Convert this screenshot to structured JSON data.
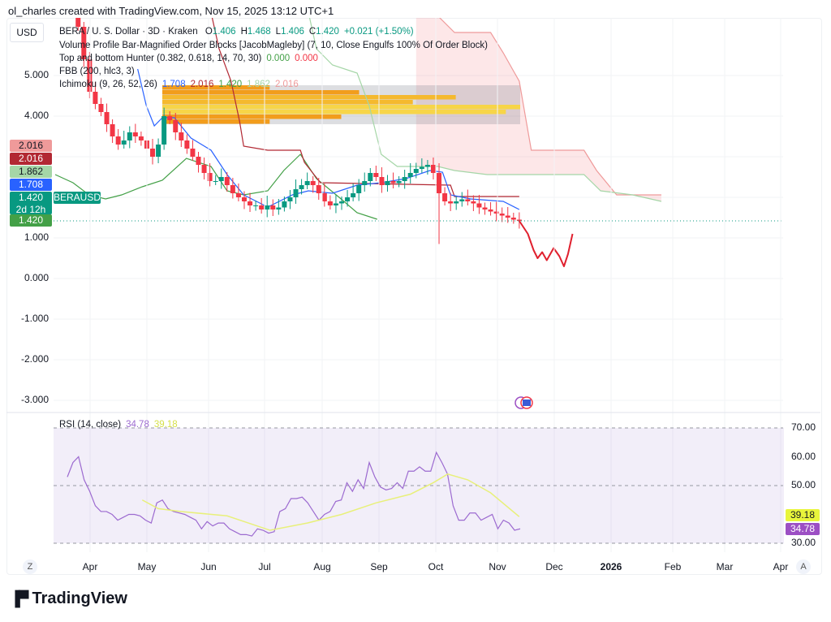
{
  "credit": "ol_charles created with TradingView.com, Nov 15, 2025 13:12 UTC+1",
  "currency_button": "USD",
  "legend": {
    "symbol": "BERA / U. S. Dollar · 3D · Kraken",
    "o_label": "O",
    "o": "1.406",
    "h_label": "H",
    "h": "1.468",
    "l_label": "L",
    "l": "1.406",
    "c_label": "C",
    "c": "1.420",
    "change": "+0.021 (+1.50%)",
    "vp": "Volume Profile Bar-Magnified Order Blocks [JacobMagleby] (7, 10, Close Engulfs 100% Of Order Block)",
    "tbh": "Top and bottom Hunter (0.382, 0.618, 14, 70, 30)",
    "tbh_v1": "0.000",
    "tbh_v2": "0.000",
    "fbb": "FBB (200, hlc3, 3)",
    "ichi": "Ichimoku (9, 26, 52, 26)",
    "ichi_v": [
      "1.708",
      "2.016",
      "1.420",
      "1.862",
      "2.016"
    ]
  },
  "price_labels": [
    {
      "text": "2.016",
      "color": "#ef9a9a",
      "fg": "#131722"
    },
    {
      "text": "2.016",
      "color": "#b22833",
      "fg": "#ffffff"
    },
    {
      "text": "1.862",
      "color": "#a5d6a7",
      "fg": "#131722"
    },
    {
      "text": "1.708",
      "color": "#2962ff",
      "fg": "#ffffff"
    },
    {
      "text": "1.420",
      "sub": "2d 12h",
      "tag": "BERAUSD",
      "color": "#089981",
      "fg": "#ffffff"
    },
    {
      "text": "1.420",
      "color": "#43a047",
      "fg": "#ffffff"
    }
  ],
  "rsi_labels": [
    {
      "text": "39.18",
      "color": "#e8f53b",
      "fg": "#131722"
    },
    {
      "text": "34.78",
      "color": "#9c4fc4",
      "fg": "#ffffff"
    }
  ],
  "colors": {
    "up": "#089981",
    "down": "#f23645",
    "tenkan": "#2962ff",
    "kijun": "#b22833",
    "lagging": "#43a047",
    "spanB": "#a5d6a7",
    "spanA": "#ef9a9a",
    "rsi": "#9c6ad0",
    "rsi_ma": "#e8f07a"
  },
  "axis_buttons": {
    "left": "Z",
    "right": "A"
  },
  "logo": "TradingView",
  "chart_data": [
    {
      "type": "candlestick",
      "title": "BERA / U. S. Dollar · 3D · Kraken",
      "interval_days": 3,
      "ylim": [
        -3.4,
        6.86
      ],
      "yticks": [
        "5.000",
        "4.000",
        "1.000",
        "0.000",
        "-1.000",
        "-2.000",
        "-3.000"
      ],
      "ytick_values": [
        5,
        4,
        1,
        0,
        -1,
        -2,
        -3
      ],
      "xticks": [
        "Apr",
        "May",
        "Jun",
        "Jul",
        "Aug",
        "Sep",
        "Oct",
        "Nov",
        "Dec",
        "2026",
        "Feb",
        "Mar",
        "Apr"
      ],
      "closes": [
        7.2,
        7.6,
        6.8,
        7.4,
        6.2,
        5.4,
        4.6,
        4.3,
        4.1,
        3.8,
        3.5,
        3.3,
        3.4,
        3.6,
        3.5,
        3.4,
        3.2,
        3.0,
        3.3,
        4.0,
        3.9,
        3.6,
        3.4,
        3.2,
        3.0,
        2.8,
        2.6,
        2.4,
        2.4,
        2.5,
        2.3,
        2.1,
        2.0,
        1.9,
        1.8,
        1.8,
        1.7,
        1.8,
        1.7,
        1.75,
        1.9,
        2.0,
        2.2,
        2.3,
        2.4,
        2.3,
        2.1,
        1.9,
        1.8,
        1.85,
        1.9,
        2.0,
        2.1,
        2.3,
        2.4,
        2.6,
        2.5,
        2.3,
        2.4,
        2.35,
        2.4,
        2.5,
        2.6,
        2.7,
        2.75,
        2.8,
        2.6,
        2.1,
        1.9,
        1.85,
        1.9,
        1.95,
        1.9,
        1.85,
        1.75,
        1.7,
        1.65,
        1.6,
        1.55,
        1.5,
        1.45,
        1.42
      ],
      "last_price": 1.42,
      "tenkan": [
        [
          14.4,
          5.16
        ],
        [
          15.9,
          4.26
        ],
        [
          17.3,
          3.76
        ],
        [
          18.7,
          3.96
        ],
        [
          20.8,
          3.96
        ],
        [
          23.7,
          3.46
        ],
        [
          27.2,
          3.16
        ],
        [
          30,
          2.56
        ],
        [
          32.9,
          2.06
        ],
        [
          37.1,
          1.76
        ],
        [
          41.4,
          2.06
        ],
        [
          44.2,
          2.16
        ],
        [
          48.4,
          2.1
        ],
        [
          52.7,
          2.3
        ],
        [
          56.9,
          2.36
        ],
        [
          61.2,
          2.46
        ],
        [
          65.4,
          2.66
        ],
        [
          67.6,
          2.62
        ],
        [
          69,
          2.06
        ],
        [
          72.5,
          1.96
        ],
        [
          78.2,
          1.9
        ],
        [
          81,
          1.7
        ]
      ],
      "kijun": [
        [
          26.5,
          7
        ],
        [
          28.6,
          5.66
        ],
        [
          30.7,
          4.86
        ],
        [
          32.2,
          3.86
        ],
        [
          32.9,
          3.26
        ],
        [
          37.1,
          3.16
        ],
        [
          42.8,
          3.16
        ],
        [
          43.5,
          2.86
        ],
        [
          46.3,
          2.36
        ],
        [
          69,
          2.3
        ],
        [
          69.7,
          2.02
        ],
        [
          81,
          2.02
        ]
      ],
      "lagging": [
        [
          0,
          2.56
        ],
        [
          3.1,
          2.36
        ],
        [
          5.9,
          2.06
        ],
        [
          8.8,
          1.96
        ],
        [
          11.6,
          2.06
        ],
        [
          15.2,
          2.26
        ],
        [
          18.7,
          2.42
        ],
        [
          22.9,
          2.96
        ],
        [
          27.2,
          2.76
        ],
        [
          30,
          2.16
        ],
        [
          32.9,
          2.06
        ],
        [
          37.1,
          2.16
        ],
        [
          39.9,
          2.66
        ],
        [
          42.8,
          3.06
        ],
        [
          45.6,
          2.46
        ],
        [
          49.9,
          1.96
        ],
        [
          52.7,
          1.62
        ],
        [
          56.2,
          1.46
        ]
      ],
      "spanB": [
        [
          43.5,
          7
        ],
        [
          45.6,
          5.66
        ],
        [
          48.4,
          5.26
        ],
        [
          52.7,
          5.06
        ],
        [
          54.8,
          4.26
        ],
        [
          56.9,
          3.06
        ],
        [
          59.7,
          2.76
        ],
        [
          63,
          2.76
        ],
        [
          66.8,
          2.76
        ],
        [
          69.7,
          2.66
        ],
        [
          75.4,
          2.56
        ],
        [
          92.3,
          2.56
        ],
        [
          95.2,
          2.16
        ],
        [
          100.8,
          2.06
        ],
        [
          105.8,
          1.9
        ]
      ],
      "spanA": [
        [
          63,
          7
        ],
        [
          69.7,
          6.06
        ],
        [
          76,
          6.06
        ],
        [
          78.2,
          5.56
        ],
        [
          81,
          4.86
        ],
        [
          83.1,
          3.16
        ],
        [
          92.3,
          3.16
        ],
        [
          94.5,
          2.66
        ],
        [
          98,
          2.06
        ],
        [
          105.8,
          2.06
        ]
      ],
      "drawing": [
        [
          81,
          1.42
        ],
        [
          82.5,
          1.1
        ],
        [
          83.5,
          0.7
        ],
        [
          84.2,
          0.5
        ],
        [
          85,
          0.65
        ],
        [
          85.8,
          0.45
        ],
        [
          87,
          0.75
        ],
        [
          88,
          0.55
        ],
        [
          88.8,
          0.3
        ],
        [
          89.5,
          0.6
        ],
        [
          90.3,
          1.1
        ]
      ],
      "volume_profile_range": [
        3.8,
        4.76
      ],
      "volume_profile_bars": [
        0.3,
        0.55,
        0.82,
        0.7,
        1.0,
        0.96,
        0.5,
        0.3
      ]
    },
    {
      "type": "line",
      "title": "RSI (14, close)",
      "ylim": [
        25,
        72
      ],
      "yticks": [
        "70.00",
        "60.00",
        "50.00",
        "30.00"
      ],
      "ytick_values": [
        70,
        60,
        50,
        30
      ],
      "bands": [
        30,
        50,
        70
      ],
      "series": [
        {
          "name": "RSI",
          "value_label": "34.78",
          "start_index": 2,
          "values": [
            53,
            58,
            60,
            52,
            48,
            43,
            41,
            41,
            40,
            38,
            39,
            40,
            40,
            39.5,
            38,
            37,
            44,
            45,
            42,
            41,
            40.5,
            40,
            39,
            38,
            35,
            37.5,
            36,
            37,
            37,
            35,
            34,
            33,
            33,
            32.5,
            35,
            34.5,
            33.5,
            34,
            41,
            42,
            45.5,
            45.5,
            46,
            44,
            41,
            38,
            40,
            41,
            44.5,
            45,
            51,
            48,
            52,
            49,
            58,
            53,
            49.5,
            48.5,
            49,
            51,
            49,
            55,
            55,
            56.5,
            55,
            55,
            61.5,
            58,
            54,
            43,
            38,
            38,
            40.5,
            40.5,
            38,
            39,
            40,
            35,
            38,
            37,
            34.5,
            35
          ]
        },
        {
          "name": "RSI-based MA",
          "value_label": "39.18",
          "points": [
            [
              15.2,
              45
            ],
            [
              18,
              42
            ],
            [
              22,
              41
            ],
            [
              30,
              39.5
            ],
            [
              37.5,
              34.5
            ],
            [
              44,
              37
            ],
            [
              50,
              40
            ],
            [
              56,
              44
            ],
            [
              62,
              47
            ],
            [
              66,
              51
            ],
            [
              68.5,
              54
            ],
            [
              72,
              52
            ],
            [
              76,
              47.5
            ],
            [
              81,
              39.2
            ]
          ]
        }
      ]
    }
  ]
}
